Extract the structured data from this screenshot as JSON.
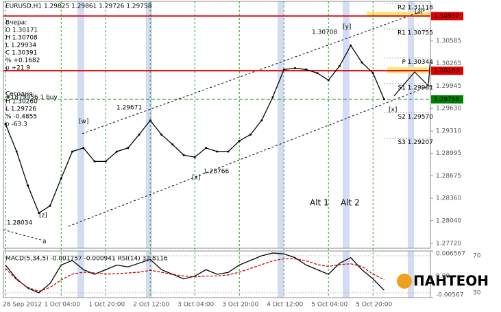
{
  "chart_data": [
    {
      "type": "line",
      "title": "EURUSD,H1  1.29825 1.29861 1.29726 1.29758",
      "info_panel": [
        "Вчера:",
        "O 1.30171",
        "H 1.30708",
        "L 1.29934",
        "C 1.30391",
        "% +0.1682",
        "p +21.9",
        "Сегодня:",
        "H 1.30260",
        "L 1.29726",
        "% -0.4855",
        "p -63.3"
      ],
      "order_label": "#1879956 1 buy",
      "categories": [
        "28 Sep 2012",
        null,
        null,
        null,
        null,
        "1 Oct 04:00",
        null,
        null,
        null,
        "1 Oct 20:00",
        null,
        null,
        null,
        "2 Oct 12:00",
        null,
        null,
        null,
        "3 Oct 04:00",
        null,
        null,
        null,
        "3 Oct 20:00",
        null,
        null,
        null,
        "4 Oct 12:00",
        null,
        null,
        null,
        "5 Oct 04:00",
        null,
        null,
        null,
        "5 Oct 20:00",
        null
      ],
      "values": [
        1.2941,
        1.2902,
        1.2854,
        1.2815,
        1.2825,
        1.2864,
        1.2902,
        1.2907,
        1.2888,
        1.2888,
        1.2902,
        1.2907,
        1.2926,
        1.2946,
        1.2926,
        1.2912,
        1.2897,
        1.2894,
        1.2907,
        1.2902,
        1.2902,
        1.2917,
        1.2926,
        1.2946,
        1.2979,
        1.3018,
        1.302,
        1.3018,
        1.3013,
        1.3003,
        1.3023,
        1.3052,
        1.3028,
        1.3013,
        1.29758
      ],
      "color": "#000000",
      "ylim": [
        1.27651,
        1.31145
      ],
      "yticks": [
        1.30585,
        {
          "value": 1.30265,
          "label": "1.30265"
        },
        1.29945,
        {
          "value": 1.2963,
          "label": "1.29630"
        },
        {
          "value": 1.2931,
          "label": "1.29310"
        },
        1.28995,
        1.28675,
        {
          "value": 1.2836,
          "label": "1.28360"
        },
        {
          "value": 1.2804,
          "label": "1.28040"
        },
        {
          "value": 1.2772,
          "label": "1.27720"
        }
      ],
      "levels": [
        {
          "value": 1.30937,
          "color": "#e00000"
        },
        {
          "value": 1.30163,
          "color": "#e00000"
        },
        {
          "value": 1.29758,
          "color": "#008000"
        }
      ],
      "pivots": [
        {
          "label": "R2 1.31118",
          "value": 1.31118
        },
        {
          "label": "R1 1.30755",
          "value": 1.30755
        },
        {
          "label": "P 1.30344",
          "value": 1.30344
        },
        {
          "label": "S1 1.29981",
          "value": 1.29981
        },
        {
          "label": "S2 1.29570",
          "value": 1.2957
        },
        {
          "label": "S3 1.29207",
          "value": 1.29207
        }
      ],
      "annotations": [
        "[z]",
        "a",
        "[w]",
        "1.29671",
        "[x]",
        "1.28766",
        "1.30708",
        "[y]",
        "[x]",
        "[z]",
        "1.28034",
        "Alt 1",
        "Alt 2"
      ],
      "logo": "ПАНТЕОН"
    },
    {
      "type": "line",
      "title": "MACD(5,34,5) -0.001757 -0.000941 RSI(14) 32.8116",
      "series": [
        {
          "color": "#000000",
          "values": [
            60,
            45,
            35,
            30,
            40,
            60,
            65,
            55,
            50,
            55,
            60,
            58,
            62,
            66,
            55,
            50,
            45,
            48,
            55,
            50,
            52,
            60,
            65,
            70,
            73,
            72,
            68,
            60,
            55,
            50,
            62,
            68,
            55,
            45,
            32.8116
          ]
        },
        {
          "color": "#cc0000",
          "axis": "y2",
          "values": [
            0.002,
            -0.001,
            -0.003,
            -0.004,
            -0.003,
            -0.001,
            0.0005,
            0.001,
            0.0008,
            0.0005,
            0.0006,
            0.0008,
            0.001,
            0.0015,
            0.001,
            0.0004,
            0,
            -0.0002,
            0,
            0,
            0.0003,
            0.001,
            0.002,
            0.003,
            0.004,
            0.0045,
            0.0045,
            0.004,
            0.003,
            0.0025,
            0.003,
            0.0032,
            0.0025,
            0.0005,
            -0.000941
          ]
        }
      ],
      "ylim": [
        24.8,
        75.2
      ],
      "yticks": [
        70,
        30
      ],
      "y2lim": [
        -0.00567,
        0.006567
      ],
      "y2ticks": [
        0.006567,
        {
          "value": 0,
          "label": "0.00"
        },
        -0.00567
      ]
    }
  ]
}
